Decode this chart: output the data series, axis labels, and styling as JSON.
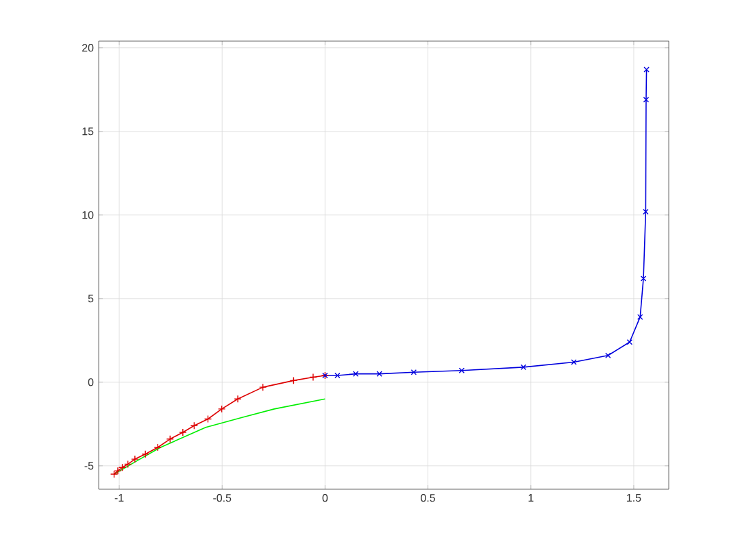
{
  "chart_data": {
    "type": "line",
    "xlim": [
      -1.1,
      1.67
    ],
    "ylim": [
      -6.4,
      20.4
    ],
    "xticks": [
      -1,
      -0.5,
      0,
      0.5,
      1,
      1.5
    ],
    "yticks": [
      -5,
      0,
      5,
      10,
      15,
      20
    ],
    "grid": true,
    "series": [
      {
        "color": "#00ee00",
        "marker": "none",
        "x": [
          -1.025,
          -0.9,
          -0.8,
          -0.58,
          -0.4,
          -0.247,
          0
        ],
        "values": [
          -5.5,
          -4.6,
          -3.9,
          -2.7,
          -2.1,
          -1.6,
          -1.0
        ]
      },
      {
        "color": "#dd0000",
        "marker": "plus",
        "x": [
          -1.025,
          -1.007,
          -0.985,
          -0.958,
          -0.924,
          -0.873,
          -0.813,
          -0.753,
          -0.691,
          -0.636,
          -0.569,
          -0.502,
          -0.424,
          -0.302,
          -0.153,
          -0.058,
          0.0
        ],
        "values": [
          -5.5,
          -5.3,
          -5.1,
          -4.9,
          -4.6,
          -4.3,
          -3.9,
          -3.4,
          -3.0,
          -2.6,
          -2.2,
          -1.6,
          -1.0,
          -0.3,
          0.1,
          0.3,
          0.4
        ]
      },
      {
        "color": "#0000dd",
        "marker": "cross",
        "x": [
          0,
          0.06,
          0.149,
          0.264,
          0.431,
          0.664,
          0.964,
          1.209,
          1.375,
          1.48,
          1.531,
          1.547,
          1.558,
          1.56,
          1.562
        ],
        "values": [
          0.4,
          0.4,
          0.5,
          0.5,
          0.6,
          0.7,
          0.9,
          1.2,
          1.6,
          2.4,
          3.9,
          6.2,
          10.2,
          16.9,
          18.7
        ]
      }
    ]
  }
}
